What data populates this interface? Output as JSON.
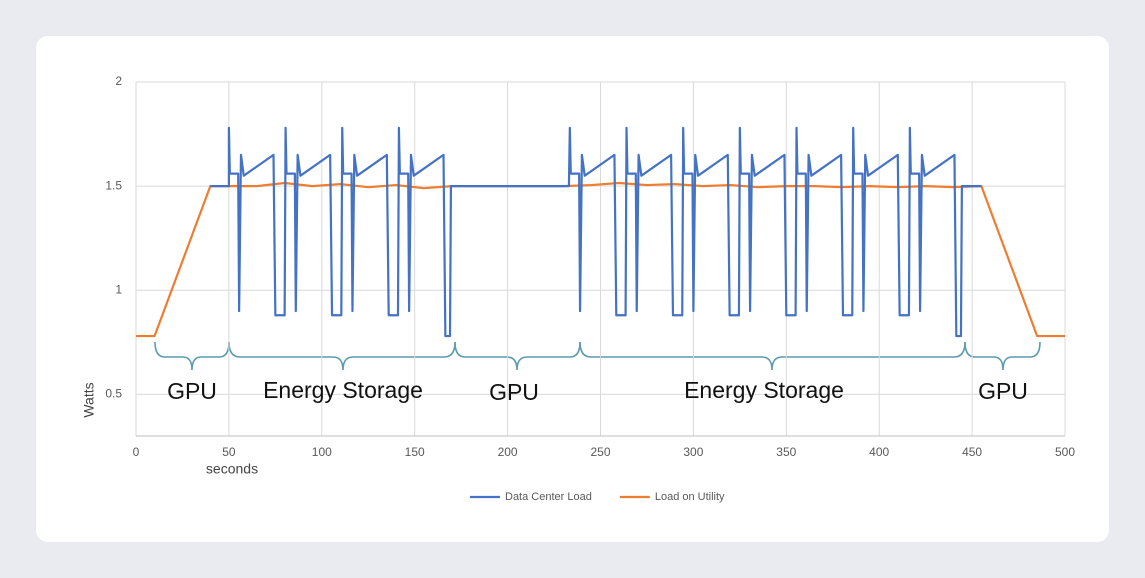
{
  "chart_data": {
    "type": "line",
    "x_label": "seconds",
    "y_label": "Watts",
    "xlim": [
      0,
      500
    ],
    "xticks": [
      0,
      50,
      100,
      150,
      200,
      250,
      300,
      350,
      400,
      450,
      500
    ],
    "ylim": [
      0.3,
      2
    ],
    "yticks": [
      0.5,
      1,
      1.5,
      2
    ],
    "grid": true,
    "legend": "bottom",
    "annotations": [
      {
        "text": "GPU"
      },
      {
        "text": "Energy Storage"
      },
      {
        "text": "GPU"
      },
      {
        "text": "Energy Storage"
      },
      {
        "text": "GPU"
      }
    ],
    "series": [
      {
        "name": "Data Center Load",
        "color": "#4472c4",
        "x": [
          40,
          50,
          50,
          50.5,
          55,
          55.5,
          56.5,
          58,
          74,
          75,
          80,
          80.5,
          81,
          85.5,
          86,
          87,
          88.5,
          104.5,
          105.5,
          110.5,
          111,
          111.5,
          116,
          116.5,
          117.5,
          119,
          135,
          136,
          141,
          141.5,
          142,
          146.5,
          147,
          148,
          149.5,
          165.5,
          166.5,
          169,
          169.5,
          233,
          233.5,
          234,
          238.5,
          239,
          240,
          241.5,
          257.5,
          258.5,
          263.5,
          264,
          264.5,
          269,
          269.5,
          270.5,
          272,
          288,
          289,
          294,
          294.5,
          295,
          299.5,
          300,
          301,
          302.5,
          318.5,
          319.5,
          324.5,
          325,
          325.5,
          330,
          330.5,
          331.5,
          333,
          349,
          350,
          355,
          355.5,
          356,
          360.5,
          361,
          362,
          363.5,
          379.5,
          380.5,
          385.5,
          386,
          386.5,
          391,
          391.5,
          392.5,
          394,
          410,
          411,
          416,
          416.5,
          417,
          421.5,
          422,
          423,
          424.5,
          440.5,
          441.5,
          444,
          444.5,
          455
        ],
        "values": [
          1.5,
          1.5,
          1.78,
          1.56,
          1.56,
          0.9,
          1.65,
          1.55,
          1.65,
          0.88,
          0.88,
          1.78,
          1.56,
          1.56,
          0.9,
          1.65,
          1.55,
          1.65,
          0.88,
          0.88,
          1.78,
          1.56,
          1.56,
          0.9,
          1.65,
          1.55,
          1.65,
          0.88,
          0.88,
          1.78,
          1.56,
          1.56,
          0.9,
          1.65,
          1.55,
          1.65,
          0.78,
          0.78,
          1.5,
          1.5,
          1.78,
          1.56,
          1.56,
          0.9,
          1.65,
          1.55,
          1.65,
          0.88,
          0.88,
          1.78,
          1.56,
          1.56,
          0.9,
          1.65,
          1.55,
          1.65,
          0.88,
          0.88,
          1.78,
          1.56,
          1.56,
          0.9,
          1.65,
          1.55,
          1.65,
          0.88,
          0.88,
          1.78,
          1.56,
          1.56,
          0.9,
          1.65,
          1.55,
          1.65,
          0.88,
          0.88,
          1.78,
          1.56,
          1.56,
          0.9,
          1.65,
          1.55,
          1.65,
          0.88,
          0.88,
          1.78,
          1.56,
          1.56,
          0.9,
          1.65,
          1.55,
          1.65,
          0.88,
          0.88,
          1.78,
          1.56,
          1.56,
          0.9,
          1.65,
          1.55,
          1.65,
          0.78,
          0.78,
          1.5,
          1.5
        ]
      },
      {
        "name": "Load on Utility",
        "color": "#ed7d31",
        "x": [
          0,
          10,
          40,
          50,
          65,
          80,
          95,
          110,
          125,
          140,
          155,
          170,
          185,
          200,
          230,
          245,
          260,
          275,
          290,
          305,
          320,
          335,
          350,
          365,
          380,
          395,
          410,
          425,
          440,
          455,
          485,
          500
        ],
        "values": [
          0.78,
          0.78,
          1.5,
          1.5,
          1.5,
          1.515,
          1.5,
          1.51,
          1.495,
          1.505,
          1.49,
          1.5,
          1.5,
          1.5,
          1.5,
          1.505,
          1.515,
          1.505,
          1.51,
          1.5,
          1.505,
          1.495,
          1.5,
          1.5,
          1.495,
          1.5,
          1.495,
          1.5,
          1.495,
          1.5,
          0.78,
          0.78
        ]
      }
    ]
  }
}
